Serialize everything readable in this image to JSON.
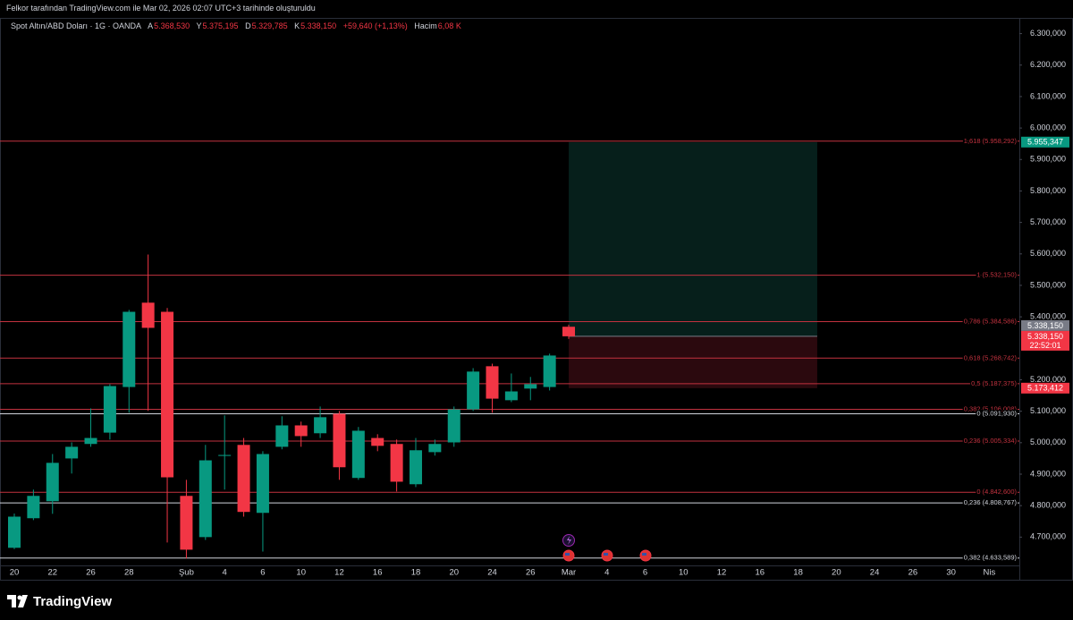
{
  "caption": "Felkor tarafından TradingView.com ile Mar 02, 2026 02:07 UTC+3 tarihinde oluşturuldu",
  "header": {
    "symbol": "Spot Altın/ABD Doları · 1G · OANDA",
    "open_label": "A",
    "open": "5.368,530",
    "high_label": "Y",
    "high": "5.375,195",
    "low_label": "D",
    "low": "5.329,785",
    "close_label": "K",
    "close": "5.338,150",
    "change": "+59,640 (+1,13%)",
    "volume_label": "Hacim",
    "volume": "6,08 K"
  },
  "footer": {
    "brand": "TradingView"
  },
  "chart_data": {
    "type": "candlestick",
    "title": "Spot Altın/ABD Doları · 1G · OANDA",
    "up_color": "#089981",
    "down_color": "#f23645",
    "categories": [
      "20",
      null,
      "22",
      null,
      "26",
      null,
      "28",
      null,
      null,
      "Şub",
      null,
      "4",
      null,
      "6",
      null,
      "10",
      null,
      "12",
      null,
      "16",
      null,
      "18",
      null,
      "20",
      null,
      "24",
      null,
      "26",
      null,
      "Mar",
      null,
      "4",
      null,
      "6",
      null,
      "10",
      null,
      "12",
      null,
      "16",
      null,
      "18",
      null,
      "20",
      null,
      "24",
      null,
      "26",
      null,
      "30",
      null,
      "Nis"
    ],
    "open": [
      4666,
      4760,
      4814,
      4950,
      4996,
      5032,
      5177,
      5445,
      5416,
      4831,
      4700,
      4958,
      4993,
      4777,
      4987,
      5055,
      5030,
      5092,
      4888,
      5015,
      4996,
      4868,
      4970,
      5001,
      5106,
      5243,
      5135,
      5172,
      5177,
      5368.53,
      null,
      null,
      null,
      null,
      null,
      null,
      null,
      null,
      null,
      null,
      null,
      null,
      null,
      null,
      null,
      null,
      null,
      null,
      null,
      null,
      null,
      null
    ],
    "high": [
      4775,
      4851,
      4964,
      5001,
      5109,
      5186,
      5422,
      5598,
      5428,
      4882,
      4993,
      5087,
      5015,
      4973,
      5084,
      5067,
      5115,
      5101,
      5050,
      5027,
      5010,
      5015,
      5010,
      5115,
      5237,
      5251,
      5220,
      5209,
      5283,
      5375.195,
      null,
      null,
      null,
      null,
      null,
      null,
      null,
      null,
      null,
      null,
      null,
      null,
      null,
      null,
      null,
      null,
      null,
      null,
      null,
      null,
      null,
      null
    ],
    "low": [
      4662,
      4754,
      4774,
      4902,
      4987,
      5010,
      5095,
      5101,
      4683,
      4632,
      4691,
      4851,
      4765,
      4654,
      4979,
      4987,
      5015,
      4882,
      4882,
      4973,
      4845,
      4859,
      4959,
      4987,
      5101,
      5095,
      5129,
      5135,
      5166,
      5329.785,
      null,
      null,
      null,
      null,
      null,
      null,
      null,
      null,
      null,
      null,
      null,
      null,
      null,
      null,
      null,
      null,
      null,
      null,
      null,
      null,
      null,
      null
    ],
    "close": [
      4765,
      4831,
      4936,
      4987,
      5015,
      5180,
      5416,
      5365,
      4890,
      4660,
      4944,
      4961,
      4780,
      4964,
      5055,
      5021,
      5081,
      4922,
      5038,
      4990,
      4876,
      4976,
      4996,
      5106,
      5226,
      5140,
      5163,
      5186,
      5277,
      5338.15,
      null,
      null,
      null,
      null,
      null,
      null,
      null,
      null,
      null,
      null,
      null,
      null,
      null,
      null,
      null,
      null,
      null,
      null,
      null,
      null,
      null,
      null
    ],
    "ylim": [
      4610,
      6350
    ],
    "yticks": [
      {
        "value": 6300,
        "label": "6.300,000"
      },
      {
        "value": 6200,
        "label": "6.200,000"
      },
      {
        "value": 6100,
        "label": "6.100,000"
      },
      {
        "value": 6000,
        "label": "6.000,000"
      },
      {
        "value": 5900,
        "label": "5.900,000"
      },
      {
        "value": 5800,
        "label": "5.800,000"
      },
      {
        "value": 5700,
        "label": "5.700,000"
      },
      {
        "value": 5600,
        "label": "5.600,000"
      },
      {
        "value": 5500,
        "label": "5.500,000"
      },
      {
        "value": 5400,
        "label": "5.400,000"
      },
      {
        "value": 5200,
        "label": "5.200,000"
      },
      {
        "value": 5100,
        "label": "5.100,000"
      },
      {
        "value": 5000,
        "label": "5.000,000"
      },
      {
        "value": 4900,
        "label": "4.900,000"
      },
      {
        "value": 4800,
        "label": "4.800,000"
      },
      {
        "value": 4700,
        "label": "4.700,000"
      }
    ],
    "fib_levels": [
      {
        "value": 5958.292,
        "label": "1,618 (5.958,292)",
        "color": "#c2323f"
      },
      {
        "value": 5532.15,
        "label": "1 (5.532,150)",
        "color": "#c2323f"
      },
      {
        "value": 5384.586,
        "label": "0,786 (5.384,586)",
        "color": "#c2323f"
      },
      {
        "value": 5268.742,
        "label": "0,618 (5.268,742)",
        "color": "#c2323f"
      },
      {
        "value": 5187.375,
        "label": "0,5 (5.187,375)",
        "color": "#c2323f"
      },
      {
        "value": 5106.008,
        "label": "0,382 (5.106,008)",
        "color": "#c2323f"
      },
      {
        "value": 5005.334,
        "label": "0,236 (5.005,334)",
        "color": "#c2323f"
      },
      {
        "value": 4842.6,
        "label": "0 (4.842,600)",
        "color": "#c2323f"
      },
      {
        "value": 5091.93,
        "label": "0 (5.091,930)",
        "color": "#d1d4dc"
      },
      {
        "value": 4808.767,
        "label": "0,236 (4.808,767)",
        "color": "#d1d4dc"
      },
      {
        "value": 4633.589,
        "label": "0,382 (4.633,589)",
        "color": "#d1d4dc"
      }
    ],
    "position": {
      "entry": 5338.15,
      "target": 5955.347,
      "stop": 5173.412,
      "from": 29,
      "to": 42
    },
    "price_labels": [
      {
        "value": 5955.347,
        "label": "5.955,347",
        "color": "#089981"
      },
      {
        "value": 5338.15,
        "label": "5.338,150",
        "color": "#787b86"
      },
      {
        "value": 5338.15,
        "label": "5.338,150",
        "color": "#f23645",
        "countdown": "22:52:01"
      },
      {
        "value": 5173.412,
        "label": "5.173,412",
        "color": "#f23645"
      }
    ]
  }
}
